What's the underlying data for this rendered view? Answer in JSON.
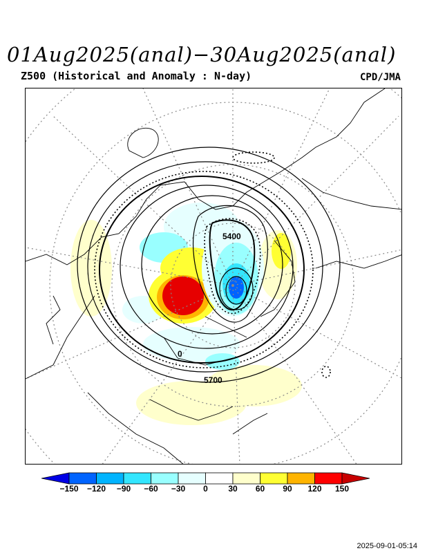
{
  "title": "01Aug2025(anal)−30Aug2025(anal)",
  "subtitle": "Z500 (Historical and Anomaly : N-day)",
  "agency": "CPD/JMA",
  "timestamp": "2025-09-01-05:14",
  "contour_labels": {
    "low": "5400",
    "high": "5700",
    "zero": "0"
  },
  "colorbar": {
    "labels": [
      "−150",
      "−120",
      "−90",
      "−60",
      "−30",
      "0",
      "30",
      "60",
      "90",
      "120",
      "150"
    ],
    "colors": [
      "#0000e6",
      "#0064ff",
      "#00b4ff",
      "#33e6ff",
      "#99ffff",
      "#e6ffff",
      "#ffffff",
      "#ffffcc",
      "#ffff33",
      "#ffb400",
      "#ff0000",
      "#c80000"
    ]
  },
  "map": {
    "projection": "north-polar-stereographic",
    "field": "Z500 height contours with anomaly shading",
    "anomaly_colors": {
      "strong_negative": "#0064ff",
      "negative": "#33e6ff",
      "weak_negative": "#e6ffff",
      "weak_positive": "#ffffcc",
      "positive": "#ffff33",
      "moderate_positive": "#ffb400",
      "strong_positive": "#e60000"
    }
  }
}
